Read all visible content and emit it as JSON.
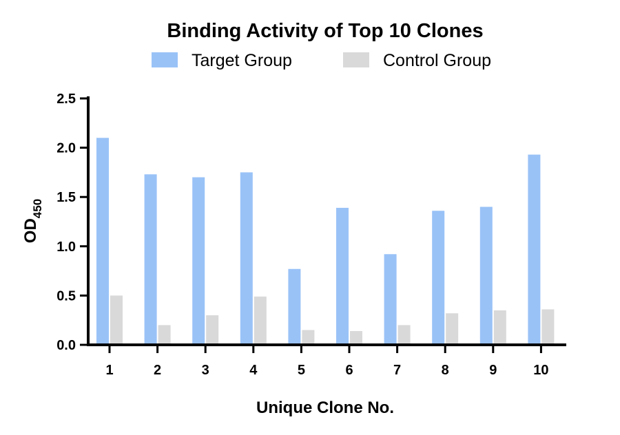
{
  "chart_data": {
    "type": "bar",
    "title": "Binding Activity of Top 10 Clones",
    "xlabel": "Unique Clone No.",
    "ylabel": "OD",
    "ylabel_subscript": "450",
    "categories": [
      "1",
      "2",
      "3",
      "4",
      "5",
      "6",
      "7",
      "8",
      "9",
      "10"
    ],
    "series": [
      {
        "name": "Target Group",
        "color": "#99c2f7",
        "values": [
          2.1,
          1.73,
          1.7,
          1.75,
          0.77,
          1.39,
          0.92,
          1.36,
          1.4,
          1.93
        ]
      },
      {
        "name": "Control Group",
        "color": "#d9d9d9",
        "values": [
          0.5,
          0.2,
          0.3,
          0.49,
          0.15,
          0.14,
          0.2,
          0.32,
          0.35,
          0.36
        ]
      }
    ],
    "ylim": [
      0,
      2.5
    ],
    "yticks": [
      "0.0",
      "0.5",
      "1.0",
      "1.5",
      "2.0",
      "2.5"
    ],
    "legend_position": "top",
    "grid": false
  }
}
